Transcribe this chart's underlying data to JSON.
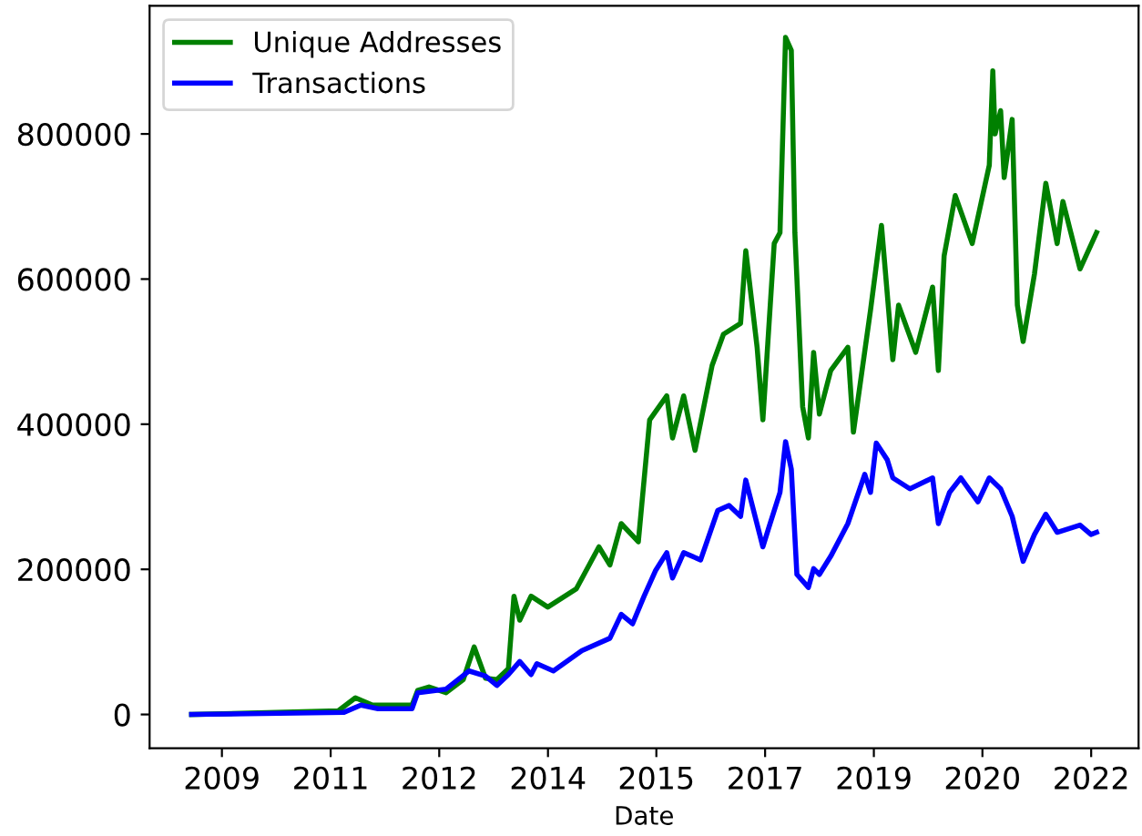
{
  "chart_data": {
    "type": "line",
    "xlabel": "Date",
    "legend": "top left",
    "grid": false,
    "xlim": [
      "2008-05-20",
      "2022-12-13"
    ],
    "ylim": [
      -46500,
      976500
    ],
    "xticks": [
      {
        "value": "2009-06-13",
        "label": "2009"
      },
      {
        "value": "2011-01-19",
        "label": "2011"
      },
      {
        "value": "2012-08-25",
        "label": "2012"
      },
      {
        "value": "2014-04-02",
        "label": "2014"
      },
      {
        "value": "2015-11-06",
        "label": "2015"
      },
      {
        "value": "2017-06-13",
        "label": "2017"
      },
      {
        "value": "2019-01-19",
        "label": "2019"
      },
      {
        "value": "2020-08-25",
        "label": "2020"
      },
      {
        "value": "2022-04-02",
        "label": "2022"
      }
    ],
    "yticks": [
      0,
      200000,
      400000,
      600000,
      800000
    ],
    "series": [
      {
        "name": "Unique Addresses",
        "color": "#008000",
        "x": [
          "2009-01",
          "2011-03",
          "2011-06",
          "2011-09",
          "2012-04",
          "2012-05",
          "2012-07",
          "2012-10",
          "2013-01",
          "2013-03",
          "2013-05",
          "2013-07",
          "2013-09",
          "2013-10",
          "2013-11",
          "2014-01",
          "2014-04",
          "2014-09",
          "2015-01",
          "2015-03",
          "2015-05",
          "2015-08",
          "2015-10",
          "2016-01",
          "2016-02",
          "2016-04",
          "2016-06",
          "2016-09",
          "2016-11",
          "2017-02",
          "2017-03",
          "2017-05",
          "2017-06",
          "2017-08",
          "2017-09",
          "2017-10-01",
          "2017-11-01",
          "2017-11-20",
          "2018-01",
          "2018-02",
          "2018-03",
          "2018-04",
          "2018-06",
          "2018-09",
          "2018-10",
          "2019-01",
          "2019-03",
          "2019-05",
          "2019-06",
          "2019-09",
          "2019-12",
          "2020-01",
          "2020-02",
          "2020-04",
          "2020-07",
          "2020-10-01",
          "2020-10-20",
          "2020-11",
          "2020-12-01",
          "2020-12-20",
          "2021-02",
          "2021-03",
          "2021-04",
          "2021-06",
          "2021-08",
          "2021-10",
          "2021-11",
          "2022-02",
          "2022-05"
        ],
        "values": [
          0,
          5000,
          23000,
          13000,
          13000,
          33000,
          38000,
          30000,
          48000,
          93000,
          50000,
          48000,
          63000,
          163000,
          130000,
          163000,
          148000,
          173000,
          231000,
          206000,
          263000,
          238000,
          406000,
          439000,
          381000,
          439000,
          364000,
          481000,
          524000,
          539000,
          639000,
          506000,
          406000,
          649000,
          664000,
          933000,
          915000,
          664000,
          424000,
          381000,
          499000,
          414000,
          474000,
          506000,
          389000,
          557000,
          674000,
          489000,
          564000,
          499000,
          589000,
          474000,
          632000,
          715000,
          649000,
          757000,
          887000,
          800000,
          832000,
          740000,
          820000,
          564000,
          514000,
          607000,
          732000,
          649000,
          707000,
          614000,
          664000
        ]
      },
      {
        "name": "Transactions",
        "color": "#0000ff",
        "x": [
          "2009-01",
          "2011-04",
          "2011-07",
          "2011-10",
          "2012-04",
          "2012-05",
          "2012-10",
          "2013-02",
          "2013-05",
          "2013-07",
          "2013-09",
          "2013-11",
          "2014-01",
          "2014-02",
          "2014-05",
          "2014-10",
          "2015-03",
          "2015-05",
          "2015-07",
          "2015-09",
          "2015-11",
          "2016-01",
          "2016-02",
          "2016-04",
          "2016-07",
          "2016-10",
          "2016-12",
          "2017-02",
          "2017-03",
          "2017-06",
          "2017-07",
          "2017-09",
          "2017-10",
          "2017-11",
          "2017-12",
          "2018-02",
          "2018-03",
          "2018-04",
          "2018-06",
          "2018-09",
          "2018-12",
          "2019-01",
          "2019-02",
          "2019-04",
          "2019-05",
          "2019-08",
          "2019-12",
          "2020-01",
          "2020-03",
          "2020-05",
          "2020-08",
          "2020-10",
          "2020-12",
          "2021-02",
          "2021-04",
          "2021-06",
          "2021-08",
          "2021-10",
          "2022-02",
          "2022-04",
          "2022-05"
        ],
        "values": [
          0,
          3000,
          13000,
          8000,
          8000,
          30000,
          35000,
          60000,
          53000,
          40000,
          55000,
          73000,
          55000,
          70000,
          60000,
          88000,
          105000,
          138000,
          125000,
          163000,
          198000,
          223000,
          188000,
          223000,
          213000,
          281000,
          288000,
          273000,
          323000,
          231000,
          256000,
          306000,
          376000,
          338000,
          193000,
          175000,
          201000,
          193000,
          218000,
          263000,
          331000,
          306000,
          374000,
          351000,
          326000,
          311000,
          326000,
          263000,
          306000,
          326000,
          293000,
          326000,
          311000,
          273000,
          211000,
          248000,
          276000,
          251000,
          261000,
          248000,
          251000
        ]
      }
    ]
  }
}
